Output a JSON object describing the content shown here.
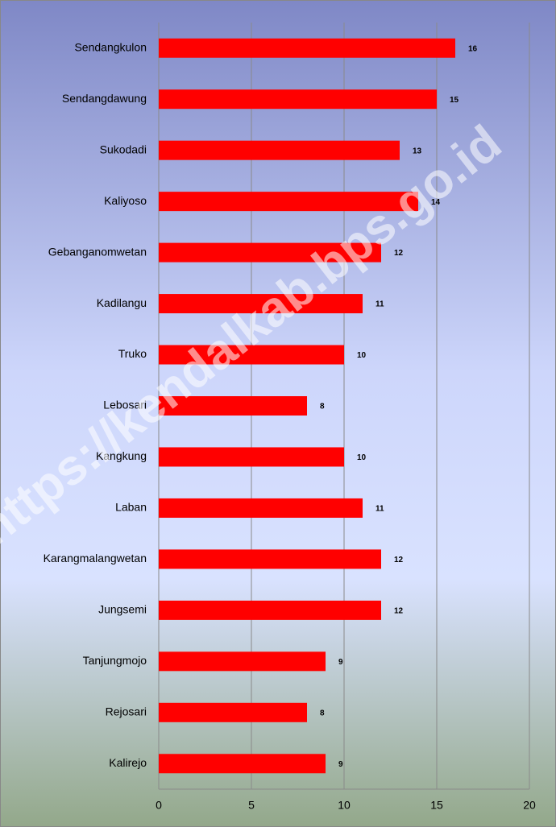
{
  "chart_data": {
    "type": "hbar",
    "categories": [
      "Sendangkulon",
      "Sendangdawung",
      "Sukodadi",
      "Kaliyoso",
      "Gebanganomwetan",
      "Kadilangu",
      "Truko",
      "Lebosari",
      "Kangkung",
      "Laban",
      "Karangmalangwetan",
      "Jungsemi",
      "Tanjungmojo",
      "Rejosari",
      "Kalirejo"
    ],
    "values": [
      16,
      15,
      13,
      14,
      12,
      11,
      10,
      8,
      10,
      11,
      12,
      12,
      9,
      8,
      9
    ],
    "color": "#ff0000",
    "xlim": [
      0,
      20
    ],
    "xticks": [
      0,
      5,
      10,
      15,
      20
    ],
    "grid": true,
    "watermark": "https://kendalkab.bps.go.id"
  }
}
